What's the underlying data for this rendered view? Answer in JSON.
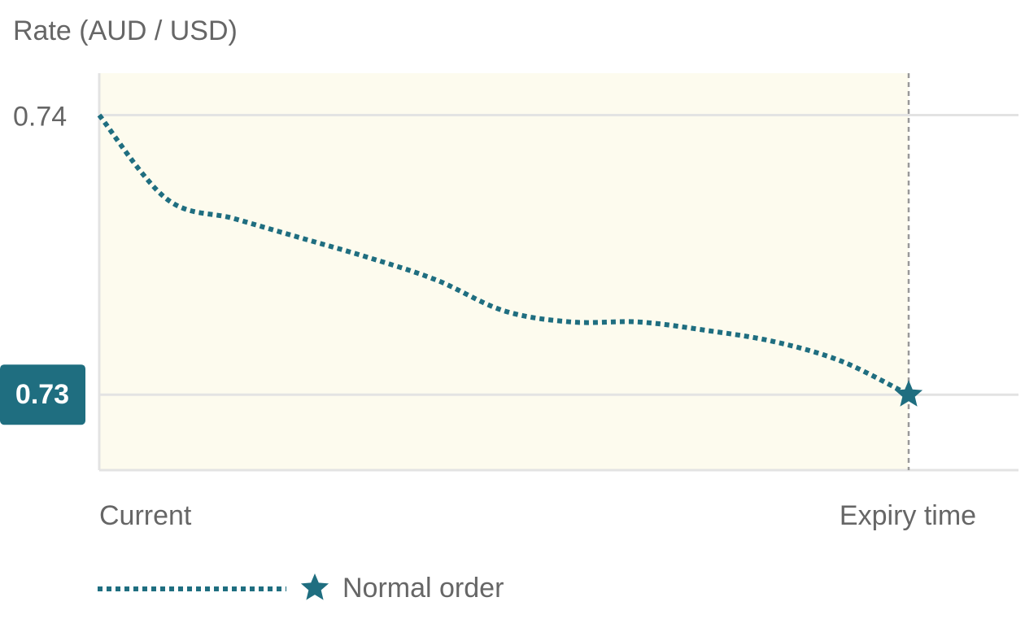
{
  "chart_data": {
    "type": "line",
    "y_axis_label": "Rate (AUD / USD)",
    "categories": [
      "Current",
      null,
      null,
      null,
      null,
      null,
      null,
      null,
      null,
      null,
      null,
      null,
      "Expiry time"
    ],
    "series": [
      {
        "name": "Normal order",
        "color": "#1f6e80",
        "values": [
          0.74,
          0.737,
          0.7363,
          0.7356,
          0.7349,
          0.7341,
          0.733,
          0.7326,
          0.7326,
          0.7323,
          0.7319,
          0.7312,
          0.73
        ]
      }
    ],
    "ylim": [
      0.7273,
      0.7415
    ],
    "yticks": [
      0.74,
      0.73
    ],
    "highlight_ytick": 1,
    "grid": true
  }
}
